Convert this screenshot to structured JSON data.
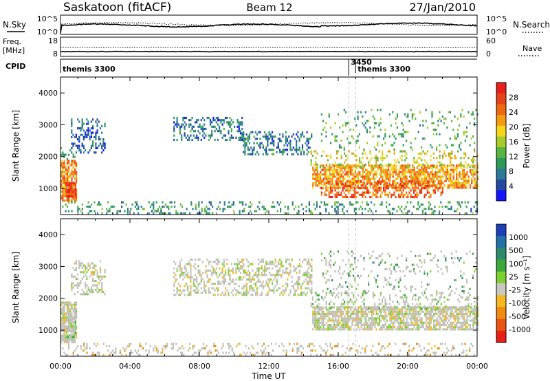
{
  "header": {
    "station": "Saskatoon (fitACF)",
    "beam": "Beam 12",
    "date": "27/Jan/2010"
  },
  "noise_panel": {
    "left_label": "N.Sky",
    "right_label": "N.Search",
    "left_ticks": [
      "10^5",
      "10^0"
    ],
    "right_ticks": [
      "10^5",
      "10^0"
    ]
  },
  "freq_panel": {
    "left_label_line1": "Freq.",
    "left_label_line2": "[MHz]",
    "right_label": "Nave",
    "left_ticks": [
      "18",
      "8"
    ],
    "right_ticks": [
      "60",
      "0"
    ]
  },
  "cpid_panel": {
    "label": "CPID",
    "segments": [
      {
        "start_hour": 0.0,
        "text": "themis 3300"
      },
      {
        "start_hour": 16.6,
        "text": "3450"
      },
      {
        "start_hour": 17.0,
        "text": "themis 3300"
      }
    ]
  },
  "chart_data": [
    {
      "type": "heatmap",
      "parameter": "Power",
      "ylabel": "Slant Range [km]",
      "xlabel": "",
      "xlim": [
        0,
        24
      ],
      "ylim": [
        180,
        4500
      ],
      "yticks": [
        "1000",
        "2000",
        "3000",
        "4000"
      ],
      "colorbar": {
        "label": "Power [dB]",
        "min": 0,
        "max": 32,
        "ticks": [
          "4",
          "8",
          "12",
          "16",
          "20",
          "24",
          "28"
        ],
        "colors": [
          "#1414ff",
          "#234aa0",
          "#2c7a9a",
          "#2e9a5a",
          "#58b640",
          "#a6cc2a",
          "#f6d51a",
          "#f39c12",
          "#ee6a10",
          "#e8421a",
          "#e8201c"
        ]
      },
      "echo_regions": [
        {
          "t0": 0.0,
          "t1": 0.9,
          "r0": 650,
          "r1": 1900,
          "v": 24,
          "density": 0.8
        },
        {
          "t0": 0.3,
          "t1": 0.9,
          "r0": 750,
          "r1": 1200,
          "v": 28,
          "density": 0.9
        },
        {
          "t0": 0.0,
          "t1": 0.8,
          "r0": 1900,
          "r1": 2300,
          "v": 10,
          "density": 0.3
        },
        {
          "t0": 0.6,
          "t1": 2.6,
          "r0": 2100,
          "r1": 3200,
          "v": 6,
          "density": 0.35
        },
        {
          "t0": 6.5,
          "t1": 10.5,
          "r0": 2500,
          "r1": 3250,
          "v": 7,
          "density": 0.35
        },
        {
          "t0": 10.5,
          "t1": 14.5,
          "r0": 2100,
          "r1": 2800,
          "v": 7,
          "density": 0.4
        },
        {
          "t0": 14.5,
          "t1": 24.0,
          "r0": 1000,
          "r1": 1750,
          "v": 22,
          "density": 0.7
        },
        {
          "t0": 15.0,
          "t1": 22.0,
          "r0": 750,
          "r1": 1250,
          "v": 26,
          "density": 0.45
        },
        {
          "t0": 14.4,
          "t1": 24.0,
          "r0": 1650,
          "r1": 2200,
          "v": 18,
          "density": 0.25
        },
        {
          "t0": 15.0,
          "t1": 24.0,
          "r0": 2200,
          "r1": 3500,
          "v": 12,
          "density": 0.12
        },
        {
          "t0": 0.0,
          "t1": 24.0,
          "r0": 200,
          "r1": 600,
          "v": 10,
          "density": 0.22
        }
      ]
    },
    {
      "type": "heatmap",
      "parameter": "Velocity",
      "ylabel": "Slant Range [km]",
      "xlabel": "Time UT",
      "xlim": [
        0,
        24
      ],
      "ylim": [
        180,
        4500
      ],
      "xticks": [
        "00:00",
        "04:00",
        "08:00",
        "12:00",
        "16:00",
        "20:00",
        "00:00"
      ],
      "yticks": [
        "1000",
        "2000",
        "3000",
        "4000"
      ],
      "colorbar": {
        "label": "Velocity [m s⁻¹]",
        "ticks": [
          "1000",
          "500",
          "100",
          "25",
          "-25",
          "-100",
          "-500",
          "-1000"
        ],
        "colors": [
          "#1d3fb8",
          "#2470a8",
          "#2e8a6a",
          "#3ca83a",
          "#7cd030",
          "#c8c8c0",
          "#f5b820",
          "#f08a10",
          "#ea5512",
          "#e82018"
        ]
      },
      "ground_scatter_color": "#c0c0b8",
      "echo_regions": [
        {
          "t0": 0.0,
          "t1": 0.9,
          "r0": 650,
          "r1": 1900,
          "v": 5,
          "density": 0.8
        },
        {
          "t0": 0.3,
          "t1": 0.9,
          "r0": 800,
          "r1": 1500,
          "v": 4,
          "density": 0.6
        },
        {
          "t0": 0.6,
          "t1": 2.6,
          "r0": 2100,
          "r1": 3200,
          "v": 5,
          "density": 0.35
        },
        {
          "t0": 6.5,
          "t1": 14.5,
          "r0": 2100,
          "r1": 3250,
          "v": 5,
          "density": 0.4
        },
        {
          "t0": 14.5,
          "t1": 24.0,
          "r0": 1000,
          "r1": 1750,
          "v": 5,
          "density": 0.75
        },
        {
          "t0": 14.4,
          "t1": 24.0,
          "r0": 1650,
          "r1": 2200,
          "v": 4,
          "density": 0.25
        },
        {
          "t0": 15.0,
          "t1": 24.0,
          "r0": 2200,
          "r1": 3500,
          "v": 3,
          "density": 0.12
        },
        {
          "t0": 0.0,
          "t1": 24.0,
          "r0": 200,
          "r1": 600,
          "v": 6,
          "density": 0.2
        }
      ]
    }
  ]
}
